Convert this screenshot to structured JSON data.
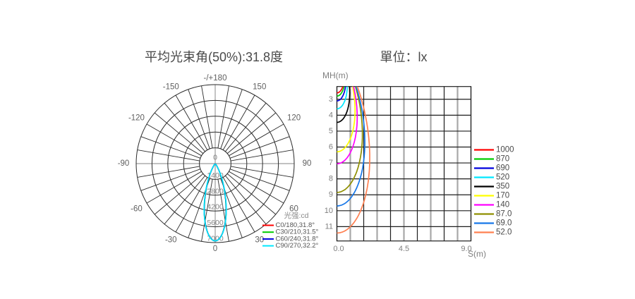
{
  "chart_data": [
    {
      "type": "line",
      "subtype": "polar_intensity_distribution",
      "title": "平均光束角(50%):31.8度",
      "legend_title": "光强:cd",
      "radial_unit": "cd",
      "radial_max": 7000,
      "radial_ticks": [
        "0",
        "1400",
        "2800",
        "4200",
        "5600",
        "7000"
      ],
      "angle_grid_step_deg": 10,
      "angle_tick_labels": [
        {
          "text": "0",
          "deg": 0
        },
        {
          "text": "30",
          "deg": 30
        },
        {
          "text": "60",
          "deg": 60
        },
        {
          "text": "90",
          "deg": 90
        },
        {
          "text": "120",
          "deg": 120
        },
        {
          "text": "150",
          "deg": 150
        },
        {
          "text": "-/+180",
          "deg": 180
        },
        {
          "text": "-150",
          "deg": -150
        },
        {
          "text": "-120",
          "deg": -120
        },
        {
          "text": "-90",
          "deg": -90
        },
        {
          "text": "-60",
          "deg": -60
        },
        {
          "text": "-30",
          "deg": -30
        }
      ],
      "series": [
        {
          "name": "C0/180,31.8°",
          "color": "#ff0000",
          "peak_cd": 6850,
          "beam_angle_deg": 31.8
        },
        {
          "name": "C30/210,31.5°",
          "color": "#00cc00",
          "peak_cd": 6850,
          "beam_angle_deg": 31.5
        },
        {
          "name": "C60/240,31.8°",
          "color": "#0000dd",
          "peak_cd": 6850,
          "beam_angle_deg": 31.8
        },
        {
          "name": "C90/270,32.2°",
          "color": "#00e8ff",
          "peak_cd": 6850,
          "beam_angle_deg": 32.2
        }
      ]
    },
    {
      "type": "line",
      "subtype": "isolux_mounting_height",
      "title": "單位：lx",
      "xlabel": "S(m)",
      "ylabel": "MH(m)",
      "xlim": [
        0,
        9
      ],
      "x_grid_step": 0.9,
      "x_tick_labels": [
        {
          "text": "0.0",
          "value": 0
        },
        {
          "text": "4.5",
          "value": 4.5
        },
        {
          "text": "9.0",
          "value": 9
        }
      ],
      "y_ticks": [
        3,
        4,
        5,
        6,
        7,
        8,
        9,
        10,
        11
      ],
      "ylim": [
        2.2,
        11.9
      ],
      "y_axis_inverted": true,
      "beam_model": {
        "peak_cd": 6800,
        "beam_angle_deg": 31.8
      },
      "series": [
        {
          "name": "1000",
          "lux": 1000,
          "color": "#ff0000",
          "mh_at_s0_m": 2.6
        },
        {
          "name": "870",
          "lux": 870,
          "color": "#00cc00",
          "mh_at_s0_m": 2.8
        },
        {
          "name": "690",
          "lux": 690,
          "color": "#0000dd",
          "mh_at_s0_m": 3.1
        },
        {
          "name": "520",
          "lux": 520,
          "color": "#00e8ff",
          "mh_at_s0_m": 3.6
        },
        {
          "name": "350",
          "lux": 350,
          "color": "#000000",
          "mh_at_s0_m": 4.45
        },
        {
          "name": "170",
          "lux": 170,
          "color": "#ffff00",
          "mh_at_s0_m": 6.3
        },
        {
          "name": "140",
          "lux": 140,
          "color": "#ff00ff",
          "mh_at_s0_m": 7.05
        },
        {
          "name": "87.0",
          "lux": 87,
          "color": "#8f8f00",
          "mh_at_s0_m": 8.85
        },
        {
          "name": "69.0",
          "lux": 69,
          "color": "#1777e8",
          "mh_at_s0_m": 9.7
        },
        {
          "name": "52.0",
          "lux": 52,
          "color": "#ff8051",
          "mh_at_s0_m": 11.4
        }
      ]
    }
  ]
}
